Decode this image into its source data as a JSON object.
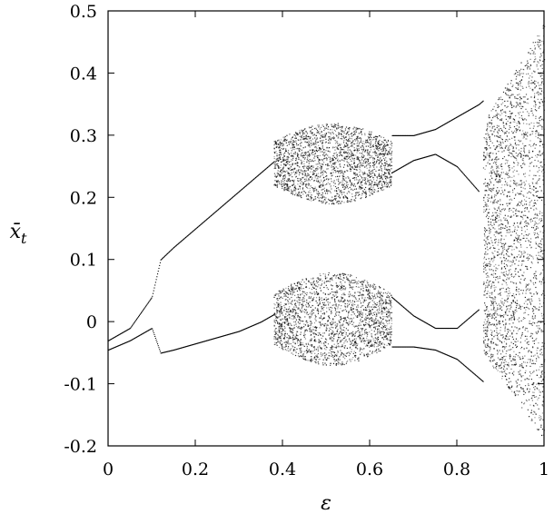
{
  "chart_data": {
    "type": "scatter",
    "title": "",
    "xlabel": "ε",
    "ylabel": "x̄",
    "ylabel_subscript": "t",
    "xlim": [
      0,
      1
    ],
    "ylim": [
      -0.2,
      0.5
    ],
    "xticks": [
      "0",
      "0.2",
      "0.4",
      "0.6",
      "0.8",
      "1"
    ],
    "yticks": [
      "-0.2",
      "-0.1",
      "0",
      "0.1",
      "0.2",
      "0.3",
      "0.4",
      "0.5"
    ],
    "xtick_values": [
      0,
      0.2,
      0.4,
      0.6,
      0.8,
      1
    ],
    "ytick_values": [
      -0.2,
      -0.1,
      0,
      0.1,
      0.2,
      0.3,
      0.4,
      0.5
    ],
    "grid": false,
    "legend": "none",
    "point_color": "#000000",
    "series": [
      {
        "branch": "upper",
        "x": [
          0.0,
          0.05,
          0.1,
          0.12,
          0.15,
          0.2,
          0.25,
          0.3,
          0.35,
          0.4,
          0.45,
          0.5,
          0.55,
          0.6,
          0.65,
          0.7,
          0.75,
          0.8,
          0.85,
          0.9,
          0.95,
          1.0
        ],
        "y": [
          -0.03,
          -0.01,
          0.04,
          0.1,
          0.12,
          0.15,
          0.18,
          0.21,
          0.24,
          0.27,
          0.27,
          0.27,
          0.28,
          0.3,
          0.3,
          0.3,
          0.31,
          0.33,
          0.35,
          0.38,
          0.42,
          0.48
        ]
      },
      {
        "branch": "lower",
        "x": [
          0.0,
          0.05,
          0.1,
          0.12,
          0.15,
          0.2,
          0.25,
          0.3,
          0.35,
          0.4,
          0.45,
          0.5,
          0.55,
          0.6,
          0.65,
          0.7,
          0.75,
          0.8,
          0.85,
          0.9,
          0.95,
          1.0
        ],
        "y": [
          -0.045,
          -0.03,
          -0.01,
          -0.05,
          -0.045,
          -0.035,
          -0.025,
          -0.015,
          0.0,
          0.02,
          0.02,
          0.02,
          0.02,
          0.04,
          -0.04,
          -0.04,
          -0.045,
          -0.06,
          -0.09,
          -0.12,
          -0.15,
          -0.19
        ]
      },
      {
        "branch": "inner-upper",
        "x": [
          0.65,
          0.7,
          0.75,
          0.8,
          0.85
        ],
        "y": [
          0.24,
          0.26,
          0.27,
          0.25,
          0.21
        ]
      },
      {
        "branch": "inner-lower",
        "x": [
          0.65,
          0.7,
          0.75,
          0.8,
          0.85
        ],
        "y": [
          0.04,
          0.01,
          -0.01,
          -0.01,
          0.02
        ]
      }
    ],
    "chaotic_bands": [
      {
        "x_range": [
          0.38,
          0.65
        ],
        "y_range": [
          0.19,
          0.32
        ]
      },
      {
        "x_range": [
          0.38,
          0.65
        ],
        "y_range": [
          -0.07,
          0.08
        ]
      },
      {
        "x_range": [
          0.86,
          1.0
        ],
        "y_range": [
          -0.19,
          0.48
        ]
      }
    ]
  }
}
